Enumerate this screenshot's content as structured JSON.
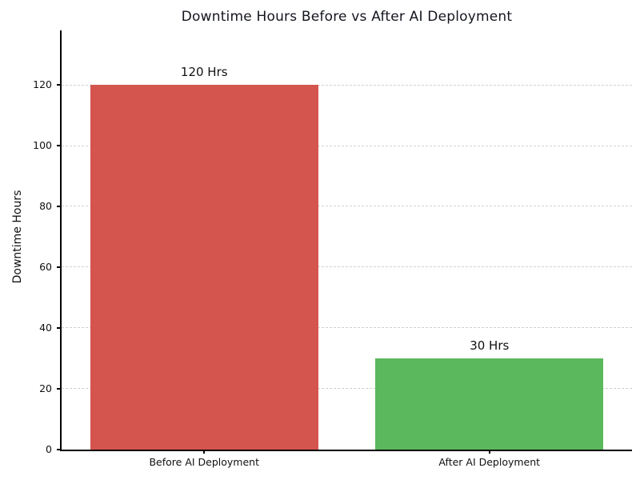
{
  "chart_data": {
    "type": "bar",
    "title": "Downtime Hours Before vs After AI Deployment",
    "categories": [
      "Before AI Deployment",
      "After AI Deployment"
    ],
    "values": [
      120,
      30
    ],
    "bar_labels": [
      "120 Hrs",
      "30 Hrs"
    ],
    "bar_colors": [
      "#d4544e",
      "#5cb85c"
    ],
    "xlabel": "",
    "ylabel": "Downtime Hours",
    "yticks": [
      0,
      20,
      40,
      60,
      80,
      100,
      120
    ],
    "ylim": [
      0,
      138
    ],
    "bar_width_fraction": 0.8,
    "grid": "horizontal-dashed",
    "legend": "none"
  },
  "colors": {
    "background": "#ffffff",
    "title_text": "#14161f",
    "axis": "#000000",
    "gridline": "#cfcfcf",
    "tick_text": "#111111",
    "bar_before": "#d4544e",
    "bar_after": "#5cb85c"
  }
}
